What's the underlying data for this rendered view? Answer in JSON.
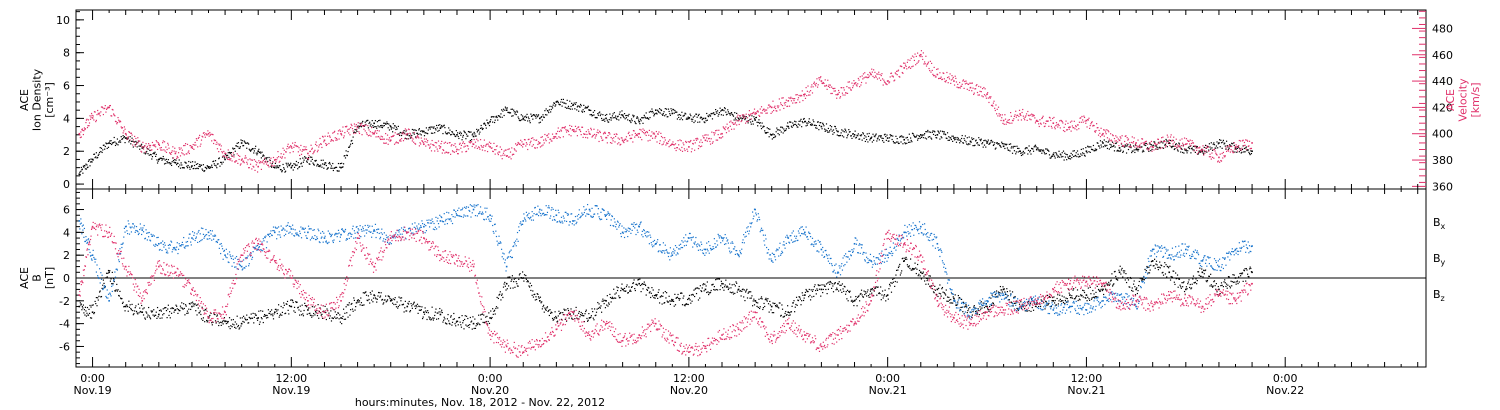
{
  "colors": {
    "black": "#000000",
    "red": "#e0306a",
    "blue": "#1874cd"
  },
  "xaxis": {
    "title": "hours:minutes, Nov. 18, 2012 - Nov. 22, 2012",
    "ticks": [
      {
        "time": "0:00",
        "date": "Nov.19",
        "hour": 0
      },
      {
        "time": "12:00",
        "date": "Nov.19",
        "hour": 12
      },
      {
        "time": "0:00",
        "date": "Nov.20",
        "hour": 24
      },
      {
        "time": "12:00",
        "date": "Nov.20",
        "hour": 36
      },
      {
        "time": "0:00",
        "date": "Nov.21",
        "hour": 48
      },
      {
        "time": "12:00",
        "date": "Nov.21",
        "hour": 60
      },
      {
        "time": "0:00",
        "date": "Nov.22",
        "hour": 72
      }
    ]
  },
  "chart_data": [
    {
      "type": "scatter",
      "panel": "top",
      "xlim_hours": [
        -1,
        80.5
      ],
      "left_axis": {
        "label_lines": [
          "ACE",
          "Ion Density",
          "[cm⁻³]"
        ],
        "ylim": [
          -0.3,
          10.6
        ],
        "ticks": [
          0,
          2,
          4,
          6,
          8,
          10
        ]
      },
      "right_axis": {
        "label_lines": [
          "ACE",
          "Velocity",
          "[km/s]"
        ],
        "ylim": [
          358,
          494
        ],
        "ticks": [
          360,
          380,
          400,
          420,
          440,
          460,
          480
        ]
      },
      "series": [
        {
          "axis": "left",
          "color": "black",
          "x": [
            -0.8,
            0,
            1,
            2,
            3,
            4,
            5,
            6,
            7,
            8,
            9,
            10,
            11,
            12,
            13,
            14,
            15,
            16,
            17,
            18,
            19,
            20,
            21,
            22,
            23,
            24,
            25,
            26,
            27,
            28,
            29,
            30,
            31,
            32,
            33,
            34,
            35,
            36,
            37,
            38,
            39,
            40,
            41,
            42,
            43,
            44,
            45,
            46,
            47,
            48,
            49,
            50,
            51,
            52,
            53,
            54,
            55,
            56,
            57,
            58,
            59,
            60,
            61,
            62,
            63,
            64,
            65,
            66,
            67,
            68,
            69,
            70
          ],
          "y": [
            0.6,
            1.5,
            2.5,
            2.8,
            2.2,
            1.5,
            1.3,
            1.1,
            1.0,
            1.5,
            2.5,
            2.0,
            1.0,
            1.0,
            1.5,
            1.2,
            1.0,
            3.5,
            3.7,
            3.5,
            3.0,
            3.2,
            3.4,
            3.0,
            2.9,
            3.8,
            4.5,
            4.0,
            4.0,
            5.0,
            4.8,
            4.5,
            4.0,
            4.2,
            3.8,
            4.5,
            4.3,
            4.0,
            4.0,
            4.5,
            4.0,
            3.9,
            3.0,
            3.5,
            3.8,
            3.5,
            3.2,
            3.0,
            2.8,
            2.8,
            2.7,
            3.0,
            3.0,
            2.8,
            2.6,
            2.5,
            2.3,
            2.0,
            2.1,
            1.8,
            1.7,
            2.0,
            2.5,
            2.2,
            2.1,
            2.3,
            2.5,
            2.1,
            2.0,
            2.5,
            2.2,
            2.0
          ]
        },
        {
          "axis": "right",
          "color": "red",
          "x": [
            -0.8,
            0,
            1,
            2,
            3,
            4,
            5,
            6,
            7,
            8,
            9,
            10,
            11,
            12,
            13,
            14,
            15,
            16,
            17,
            18,
            19,
            20,
            21,
            22,
            23,
            24,
            25,
            26,
            27,
            28,
            29,
            30,
            31,
            32,
            33,
            34,
            35,
            36,
            37,
            38,
            39,
            40,
            41,
            42,
            43,
            44,
            45,
            46,
            47,
            48,
            49,
            50,
            51,
            52,
            53,
            54,
            55,
            56,
            57,
            58,
            59,
            60,
            61,
            62,
            63,
            64,
            65,
            66,
            67,
            68,
            69,
            70
          ],
          "y": [
            400,
            412,
            420,
            400,
            390,
            392,
            385,
            390,
            400,
            385,
            380,
            375,
            380,
            390,
            385,
            395,
            400,
            405,
            400,
            395,
            400,
            392,
            390,
            388,
            392,
            390,
            383,
            392,
            393,
            400,
            403,
            400,
            397,
            395,
            400,
            398,
            392,
            390,
            395,
            400,
            410,
            415,
            420,
            425,
            430,
            440,
            430,
            438,
            445,
            440,
            450,
            460,
            445,
            440,
            435,
            430,
            410,
            415,
            410,
            408,
            405,
            410,
            400,
            395,
            393,
            390,
            395,
            392,
            388,
            382,
            390,
            393
          ]
        }
      ]
    },
    {
      "type": "scatter",
      "panel": "bottom",
      "xlim_hours": [
        -1,
        80.5
      ],
      "left_axis": {
        "label_lines": [
          "ACE",
          "B",
          "[nT]"
        ],
        "ylim": [
          -7.8,
          7.8
        ],
        "ticks": [
          -6,
          -4,
          -2,
          0,
          2,
          4,
          6
        ]
      },
      "zero_line": true,
      "legend": [
        "Bx",
        "By",
        "Bz"
      ],
      "series": [
        {
          "name": "Bx",
          "color": "black",
          "x": [
            -0.8,
            0,
            1,
            2,
            3,
            4,
            5,
            6,
            7,
            8,
            9,
            10,
            11,
            12,
            13,
            14,
            15,
            16,
            17,
            18,
            19,
            20,
            21,
            22,
            23,
            24,
            25,
            26,
            27,
            28,
            29,
            30,
            31,
            32,
            33,
            34,
            35,
            36,
            37,
            38,
            39,
            40,
            41,
            42,
            43,
            44,
            45,
            46,
            47,
            48,
            49,
            50,
            51,
            52,
            53,
            54,
            55,
            56,
            57,
            58,
            59,
            60,
            61,
            62,
            63,
            64,
            65,
            66,
            67,
            68,
            69,
            70
          ],
          "y": [
            -2.5,
            -3.0,
            0.5,
            -2.5,
            -3.0,
            -3.2,
            -2.8,
            -2.5,
            -3.5,
            -3.8,
            -4.0,
            -3.5,
            -3.0,
            -2.5,
            -2.8,
            -3.0,
            -3.5,
            -2.0,
            -1.5,
            -2.0,
            -2.5,
            -3.0,
            -3.2,
            -3.8,
            -4.0,
            -3.5,
            -0.5,
            0.0,
            -2.0,
            -3.5,
            -3.0,
            -3.5,
            -2.0,
            -1.0,
            -0.5,
            -1.5,
            -2.0,
            -1.8,
            -1.0,
            -0.5,
            -1.0,
            -2.0,
            -2.5,
            -3.0,
            -1.5,
            -1.0,
            -0.5,
            -2.0,
            -1.0,
            -1.5,
            1.5,
            0.5,
            -1.0,
            -1.8,
            -3.0,
            -2.5,
            -1.0,
            -2.5,
            -2.3,
            -2.0,
            -1.5,
            -1.5,
            -1.0,
            0.5,
            -1.0,
            1.5,
            0.5,
            -1.0,
            0.5,
            -1.0,
            0.0,
            0.5
          ]
        },
        {
          "name": "By",
          "color": "blue",
          "x": [
            -0.8,
            0,
            1,
            2,
            3,
            4,
            5,
            6,
            7,
            8,
            9,
            10,
            11,
            12,
            13,
            14,
            15,
            16,
            17,
            18,
            19,
            20,
            21,
            22,
            23,
            24,
            25,
            26,
            27,
            28,
            29,
            30,
            31,
            32,
            33,
            34,
            35,
            36,
            37,
            38,
            39,
            40,
            41,
            42,
            43,
            44,
            45,
            46,
            47,
            48,
            49,
            50,
            51,
            52,
            53,
            54,
            55,
            56,
            57,
            58,
            59,
            60,
            61,
            62,
            63,
            64,
            65,
            66,
            67,
            68,
            69,
            70
          ],
          "y": [
            5.0,
            2.0,
            -2.0,
            4.5,
            4.2,
            3.0,
            2.5,
            3.5,
            4.0,
            2.0,
            1.0,
            2.5,
            4.0,
            4.3,
            4.0,
            3.5,
            3.8,
            4.0,
            4.2,
            3.5,
            4.0,
            4.5,
            5.0,
            5.5,
            6.0,
            5.5,
            1.0,
            5.0,
            6.0,
            5.5,
            5.0,
            6.0,
            5.5,
            4.0,
            4.5,
            3.0,
            2.0,
            3.5,
            2.5,
            3.5,
            2.0,
            6.0,
            1.5,
            3.5,
            4.0,
            2.5,
            0.5,
            3.0,
            1.5,
            2.0,
            4.0,
            4.5,
            3.0,
            -2.0,
            -3.0,
            -2.0,
            -1.5,
            -2.5,
            -2.0,
            -2.8,
            -2.5,
            -2.8,
            -2.0,
            -1.5,
            -2.5,
            2.5,
            2.0,
            2.5,
            1.5,
            1.0,
            2.5,
            2.8
          ]
        },
        {
          "name": "Bz",
          "color": "red",
          "x": [
            -0.8,
            0,
            1,
            2,
            3,
            4,
            5,
            6,
            7,
            8,
            9,
            10,
            11,
            12,
            13,
            14,
            15,
            16,
            17,
            18,
            19,
            20,
            21,
            22,
            23,
            24,
            25,
            26,
            27,
            28,
            29,
            30,
            31,
            32,
            33,
            34,
            35,
            36,
            37,
            38,
            39,
            40,
            41,
            42,
            43,
            44,
            45,
            46,
            47,
            48,
            49,
            50,
            51,
            52,
            53,
            54,
            55,
            56,
            57,
            58,
            59,
            60,
            61,
            62,
            63,
            64,
            65,
            66,
            67,
            68,
            69,
            70
          ],
          "y": [
            -1.5,
            4.5,
            4.0,
            1.0,
            -2.0,
            1.0,
            0.5,
            -1.0,
            -3.5,
            -3.0,
            2.0,
            3.0,
            1.5,
            0.0,
            -2.0,
            -3.0,
            -2.0,
            3.5,
            1.0,
            3.5,
            4.0,
            3.5,
            2.0,
            1.5,
            1.0,
            -5.0,
            -6.0,
            -6.5,
            -5.5,
            -4.5,
            -3.0,
            -5.0,
            -4.0,
            -5.5,
            -5.0,
            -4.0,
            -5.5,
            -6.5,
            -6.0,
            -5.0,
            -4.5,
            -3.0,
            -5.5,
            -4.0,
            -5.0,
            -6.0,
            -5.0,
            -4.0,
            -2.0,
            4.0,
            3.0,
            2.0,
            -2.0,
            -3.5,
            -4.0,
            -3.0,
            -2.8,
            -2.5,
            -2.0,
            -1.0,
            -0.5,
            -0.3,
            -0.5,
            -2.5,
            -2.0,
            -2.5,
            -1.5,
            -2.0,
            -2.5,
            -1.5,
            -2.0,
            -0.5
          ]
        }
      ]
    }
  ]
}
